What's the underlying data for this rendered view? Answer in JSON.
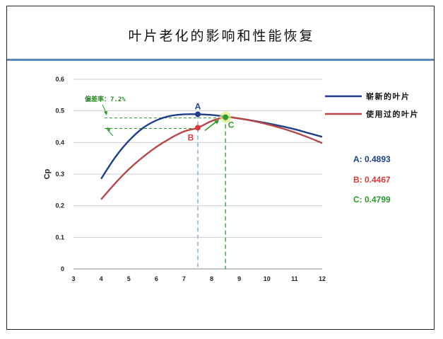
{
  "title": "叶片老化的影响和性能恢复",
  "chart_data": {
    "type": "line",
    "ylabel": "Cp",
    "xlabel": "",
    "xlim": [
      3,
      12
    ],
    "ylim": [
      0,
      0.6
    ],
    "xticks": [
      3,
      4,
      5,
      6,
      7,
      8,
      9,
      10,
      11,
      12
    ],
    "yticks": [
      0,
      0.1,
      0.2,
      0.3,
      0.4,
      0.5,
      0.6
    ],
    "ytick_labels": [
      "0",
      "0.1",
      "0.2",
      "0.3",
      "0.4",
      "0.5",
      "0.6"
    ],
    "grid": "horizontal",
    "legend_position": "right",
    "series": [
      {
        "name": "崭新的叶片",
        "color": "#1f3f8a",
        "x": [
          4,
          4.5,
          5,
          5.5,
          6,
          6.5,
          7,
          7.5,
          8,
          8.5,
          9,
          9.5,
          10,
          10.5,
          11,
          11.5,
          12
        ],
        "y": [
          0.285,
          0.352,
          0.405,
          0.445,
          0.47,
          0.484,
          0.489,
          0.4893,
          0.487,
          0.482,
          0.476,
          0.469,
          0.461,
          0.452,
          0.442,
          0.43,
          0.418
        ]
      },
      {
        "name": "使用过的叶片",
        "color": "#b84848",
        "x": [
          4,
          4.5,
          5,
          5.5,
          6,
          6.5,
          7,
          7.5,
          8,
          8.5,
          9,
          9.5,
          10,
          10.5,
          11,
          11.5,
          12
        ],
        "y": [
          0.22,
          0.27,
          0.315,
          0.353,
          0.386,
          0.413,
          0.435,
          0.4467,
          0.468,
          0.4799,
          0.476,
          0.468,
          0.458,
          0.446,
          0.432,
          0.416,
          0.398
        ]
      }
    ],
    "points": [
      {
        "label": "A",
        "x": 7.5,
        "y": 0.4893,
        "color": "#1f3f8a",
        "value_text": "A: 0.4893",
        "guide_color": "#7aa6d6"
      },
      {
        "label": "B",
        "x": 7.5,
        "y": 0.4467,
        "color": "#d93a3a",
        "value_text": "B: 0.4467"
      },
      {
        "label": "C",
        "x": 8.5,
        "y": 0.4799,
        "color": "#2a9a2a",
        "value_text": "C: 0.4799",
        "guide_color": "#2a9a2a"
      }
    ],
    "annotation": "偏差率：7.2%"
  }
}
